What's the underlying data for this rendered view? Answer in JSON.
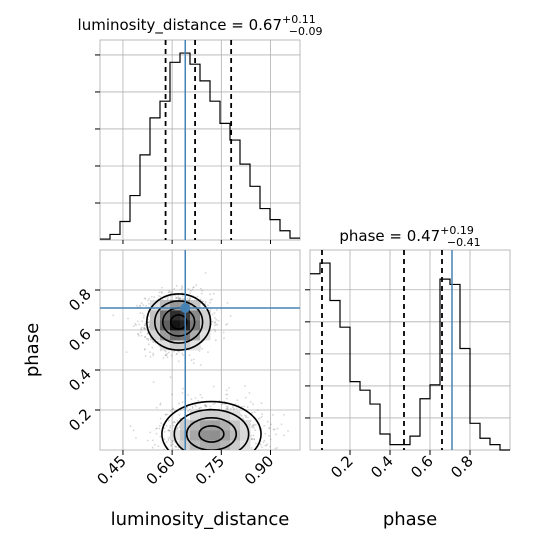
{
  "chart_data": {
    "type": "corner",
    "grid": true,
    "truth_color": "#4682b4",
    "hist_color": "#000000",
    "parameters": [
      {
        "name": "luminosity_distance",
        "median": "0.67",
        "plus": "+0.11",
        "minus": "−0.09",
        "range": [
          0.38,
          0.99
        ],
        "ticks": [
          0.45,
          0.6,
          0.75,
          0.9
        ],
        "tick_labels": [
          "0.45",
          "0.60",
          "0.75",
          "0.90"
        ]
      },
      {
        "name": "phase",
        "median": "0.47",
        "plus": "+0.19",
        "minus": "−0.41",
        "range": [
          0.0,
          1.0
        ],
        "ticks": [
          0.2,
          0.4,
          0.6,
          0.8
        ],
        "tick_labels": [
          "0.2",
          "0.4",
          "0.6",
          "0.8"
        ]
      }
    ],
    "panels": {
      "luminosity_distance_hist": {
        "bin_edges": [
          0.38,
          0.4105,
          0.441,
          0.4715,
          0.502,
          0.5325,
          0.563,
          0.5935,
          0.624,
          0.6545,
          0.685,
          0.7155,
          0.746,
          0.7765,
          0.807,
          0.8375,
          0.868,
          0.8985,
          0.929,
          0.9595,
          0.99
        ],
        "counts": [
          0.5,
          3,
          10,
          24,
          46,
          66,
          75,
          96,
          101,
          95,
          86,
          75,
          63,
          54,
          41,
          29,
          17,
          11,
          5,
          1
        ],
        "quantiles": [
          0.58,
          0.67,
          0.78
        ],
        "truth": 0.64
      },
      "phase_hist": {
        "bin_edges": [
          0.0,
          0.05,
          0.1,
          0.15,
          0.2,
          0.25,
          0.3,
          0.35,
          0.4,
          0.45,
          0.5,
          0.55,
          0.6,
          0.65,
          0.7,
          0.75,
          0.8,
          0.85,
          0.9,
          0.95,
          1.0
        ],
        "counts": [
          165,
          175,
          140,
          115,
          64,
          56,
          43,
          15,
          5,
          5,
          13,
          48,
          61,
          160,
          155,
          95,
          25,
          11,
          5,
          0
        ],
        "quantiles": [
          0.06,
          0.47,
          0.66
        ],
        "truth": 0.71
      },
      "joint": {
        "x_param": "luminosity_distance",
        "y_param": "phase",
        "truth": [
          0.64,
          0.71
        ],
        "modes": [
          {
            "x": 0.62,
            "y": 0.64,
            "sx": 0.045,
            "sy": 0.065,
            "weight": 0.55
          },
          {
            "x": 0.72,
            "y": 0.08,
            "sx": 0.07,
            "sy": 0.075,
            "weight": 0.45
          }
        ]
      }
    }
  }
}
